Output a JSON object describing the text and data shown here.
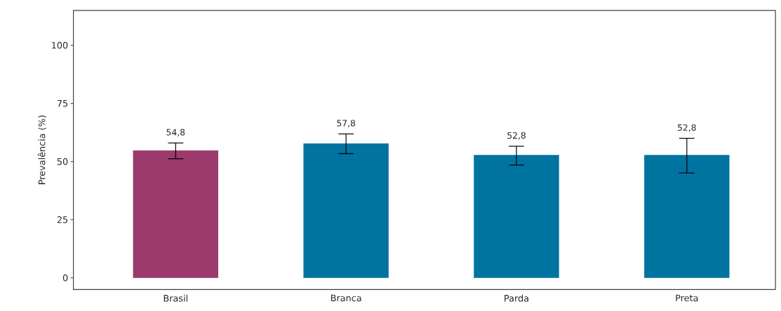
{
  "chart_data": {
    "type": "bar",
    "ylabel": "Prevalência (%)",
    "categories": [
      "Brasil",
      "Branca",
      "Parda",
      "Preta"
    ],
    "values": [
      54.8,
      57.8,
      52.8,
      52.8
    ],
    "colors": [
      "#9b3a6b",
      "#0073a1",
      "#0073a1",
      "#0073a1"
    ],
    "errors": [
      [
        51.2,
        58.0
      ],
      [
        53.4,
        61.9
      ],
      [
        48.5,
        56.6
      ],
      [
        45.1,
        60.0
      ]
    ],
    "value_labels": [
      "54,8",
      "57,8",
      "52,8",
      "52,8"
    ],
    "ylim": [
      -5,
      115
    ],
    "yticks": [
      0,
      25,
      50,
      75,
      100
    ]
  }
}
